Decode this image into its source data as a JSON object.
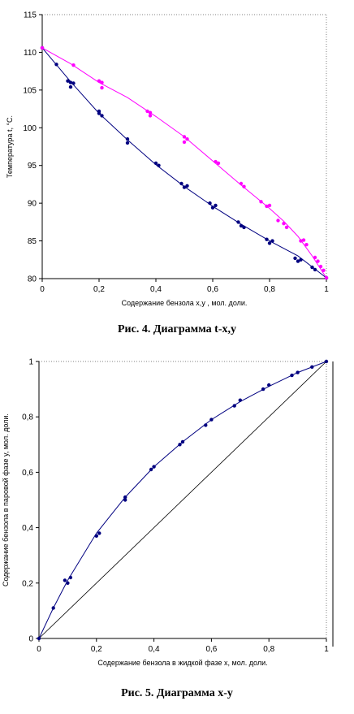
{
  "chart_data": [
    {
      "type": "scatter",
      "caption": "Рис. 4. Диаграмма t-x,y",
      "xlabel": "Содержание бензола x,y , мол. доли.",
      "ylabel": "Температура t, °C.",
      "xlim": [
        0,
        1
      ],
      "ylim": [
        80,
        115
      ],
      "x_ticks": [
        0,
        0.2,
        0.4,
        0.6,
        0.8,
        1
      ],
      "x_tick_labels": [
        "0",
        "0,2",
        "0,4",
        "0,6",
        "0,8",
        "1"
      ],
      "y_ticks": [
        80,
        85,
        90,
        95,
        100,
        105,
        110,
        115
      ],
      "y_tick_labels": [
        "80",
        "85",
        "90",
        "95",
        "100",
        "105",
        "110",
        "115"
      ],
      "grid": false,
      "series": [
        {
          "color": "#000080",
          "curve": [
            [
              0,
              110.6
            ],
            [
              0.1,
              106.1
            ],
            [
              0.2,
              101.9
            ],
            [
              0.3,
              98.4
            ],
            [
              0.4,
              95.1
            ],
            [
              0.5,
              92.2
            ],
            [
              0.6,
              89.6
            ],
            [
              0.7,
              87.2
            ],
            [
              0.8,
              85.0
            ],
            [
              0.9,
              83.0
            ],
            [
              1.0,
              80.1
            ]
          ],
          "points": [
            [
              0,
              110.6
            ],
            [
              0.05,
              108.4
            ],
            [
              0.09,
              106.2
            ],
            [
              0.1,
              105.4
            ],
            [
              0.1,
              106.0
            ],
            [
              0.11,
              105.9
            ],
            [
              0.2,
              102.2
            ],
            [
              0.21,
              101.6
            ],
            [
              0.2,
              101.9
            ],
            [
              0.3,
              98.5
            ],
            [
              0.3,
              98.0
            ],
            [
              0.4,
              95.3
            ],
            [
              0.41,
              95.0
            ],
            [
              0.49,
              92.6
            ],
            [
              0.5,
              92.1
            ],
            [
              0.51,
              92.3
            ],
            [
              0.59,
              90.0
            ],
            [
              0.6,
              89.4
            ],
            [
              0.61,
              89.7
            ],
            [
              0.69,
              87.5
            ],
            [
              0.7,
              87.0
            ],
            [
              0.71,
              86.8
            ],
            [
              0.79,
              85.2
            ],
            [
              0.8,
              84.7
            ],
            [
              0.81,
              85.0
            ],
            [
              0.89,
              82.7
            ],
            [
              0.9,
              82.3
            ],
            [
              0.91,
              82.5
            ],
            [
              0.95,
              81.5
            ],
            [
              0.96,
              81.2
            ],
            [
              1.0,
              80.1
            ]
          ]
        },
        {
          "color": "#ff00ff",
          "curve": [
            [
              0,
              110.6
            ],
            [
              0.1,
              108.5
            ],
            [
              0.2,
              106.0
            ],
            [
              0.3,
              104.0
            ],
            [
              0.4,
              101.5
            ],
            [
              0.5,
              98.8
            ],
            [
              0.6,
              95.6
            ],
            [
              0.7,
              92.4
            ],
            [
              0.8,
              89.3
            ],
            [
              0.85,
              87.6
            ],
            [
              0.9,
              85.6
            ],
            [
              0.95,
              83.0
            ],
            [
              1.0,
              80.1
            ]
          ],
          "points": [
            [
              0,
              110.6
            ],
            [
              0.11,
              108.3
            ],
            [
              0.2,
              106.2
            ],
            [
              0.21,
              106.0
            ],
            [
              0.21,
              105.3
            ],
            [
              0.37,
              102.2
            ],
            [
              0.38,
              102.0
            ],
            [
              0.38,
              101.6
            ],
            [
              0.5,
              98.8
            ],
            [
              0.5,
              98.1
            ],
            [
              0.51,
              98.5
            ],
            [
              0.61,
              95.5
            ],
            [
              0.62,
              95.3
            ],
            [
              0.7,
              92.6
            ],
            [
              0.71,
              92.2
            ],
            [
              0.77,
              90.2
            ],
            [
              0.79,
              89.6
            ],
            [
              0.8,
              89.7
            ],
            [
              0.83,
              87.7
            ],
            [
              0.85,
              87.3
            ],
            [
              0.86,
              86.8
            ],
            [
              0.91,
              85.0
            ],
            [
              0.92,
              85.1
            ],
            [
              0.93,
              84.5
            ],
            [
              0.96,
              82.8
            ],
            [
              0.97,
              82.3
            ],
            [
              0.98,
              81.6
            ],
            [
              0.99,
              81.1
            ],
            [
              1.0,
              80.1
            ]
          ]
        }
      ]
    },
    {
      "type": "scatter",
      "caption": "Рис. 5. Диаграмма x-y",
      "xlabel": "Содержание бензола в жидкой фазе x, мол. доли.",
      "ylabel": "Содержание бензола в паровой фазе y, мол. доли.",
      "xlim": [
        0,
        1
      ],
      "ylim": [
        0,
        1
      ],
      "x_ticks": [
        0,
        0.2,
        0.4,
        0.6,
        0.8,
        1
      ],
      "x_tick_labels": [
        "0",
        "0,2",
        "0,4",
        "0,6",
        "0,8",
        "1"
      ],
      "y_ticks": [
        0,
        0.2,
        0.4,
        0.6,
        0.8,
        1
      ],
      "y_tick_labels": [
        "0",
        "0,2",
        "0,4",
        "0,6",
        "0,8",
        "1"
      ],
      "grid": false,
      "diagonal": [
        [
          0,
          0
        ],
        [
          1,
          1
        ]
      ],
      "series": [
        {
          "color": "#000080",
          "curve": [
            [
              0,
              0
            ],
            [
              0.05,
              0.11
            ],
            [
              0.1,
              0.21
            ],
            [
              0.2,
              0.38
            ],
            [
              0.3,
              0.51
            ],
            [
              0.4,
              0.62
            ],
            [
              0.5,
              0.71
            ],
            [
              0.6,
              0.79
            ],
            [
              0.7,
              0.855
            ],
            [
              0.8,
              0.91
            ],
            [
              0.9,
              0.96
            ],
            [
              1.0,
              1.0
            ]
          ],
          "points": [
            [
              0,
              0
            ],
            [
              0.05,
              0.11
            ],
            [
              0.09,
              0.21
            ],
            [
              0.1,
              0.2
            ],
            [
              0.11,
              0.22
            ],
            [
              0.2,
              0.37
            ],
            [
              0.21,
              0.38
            ],
            [
              0.3,
              0.5
            ],
            [
              0.3,
              0.51
            ],
            [
              0.39,
              0.61
            ],
            [
              0.4,
              0.62
            ],
            [
              0.49,
              0.7
            ],
            [
              0.5,
              0.71
            ],
            [
              0.58,
              0.77
            ],
            [
              0.6,
              0.79
            ],
            [
              0.68,
              0.84
            ],
            [
              0.7,
              0.86
            ],
            [
              0.78,
              0.9
            ],
            [
              0.8,
              0.915
            ],
            [
              0.88,
              0.95
            ],
            [
              0.9,
              0.96
            ],
            [
              0.95,
              0.98
            ],
            [
              1.0,
              1.0
            ]
          ]
        }
      ]
    }
  ]
}
